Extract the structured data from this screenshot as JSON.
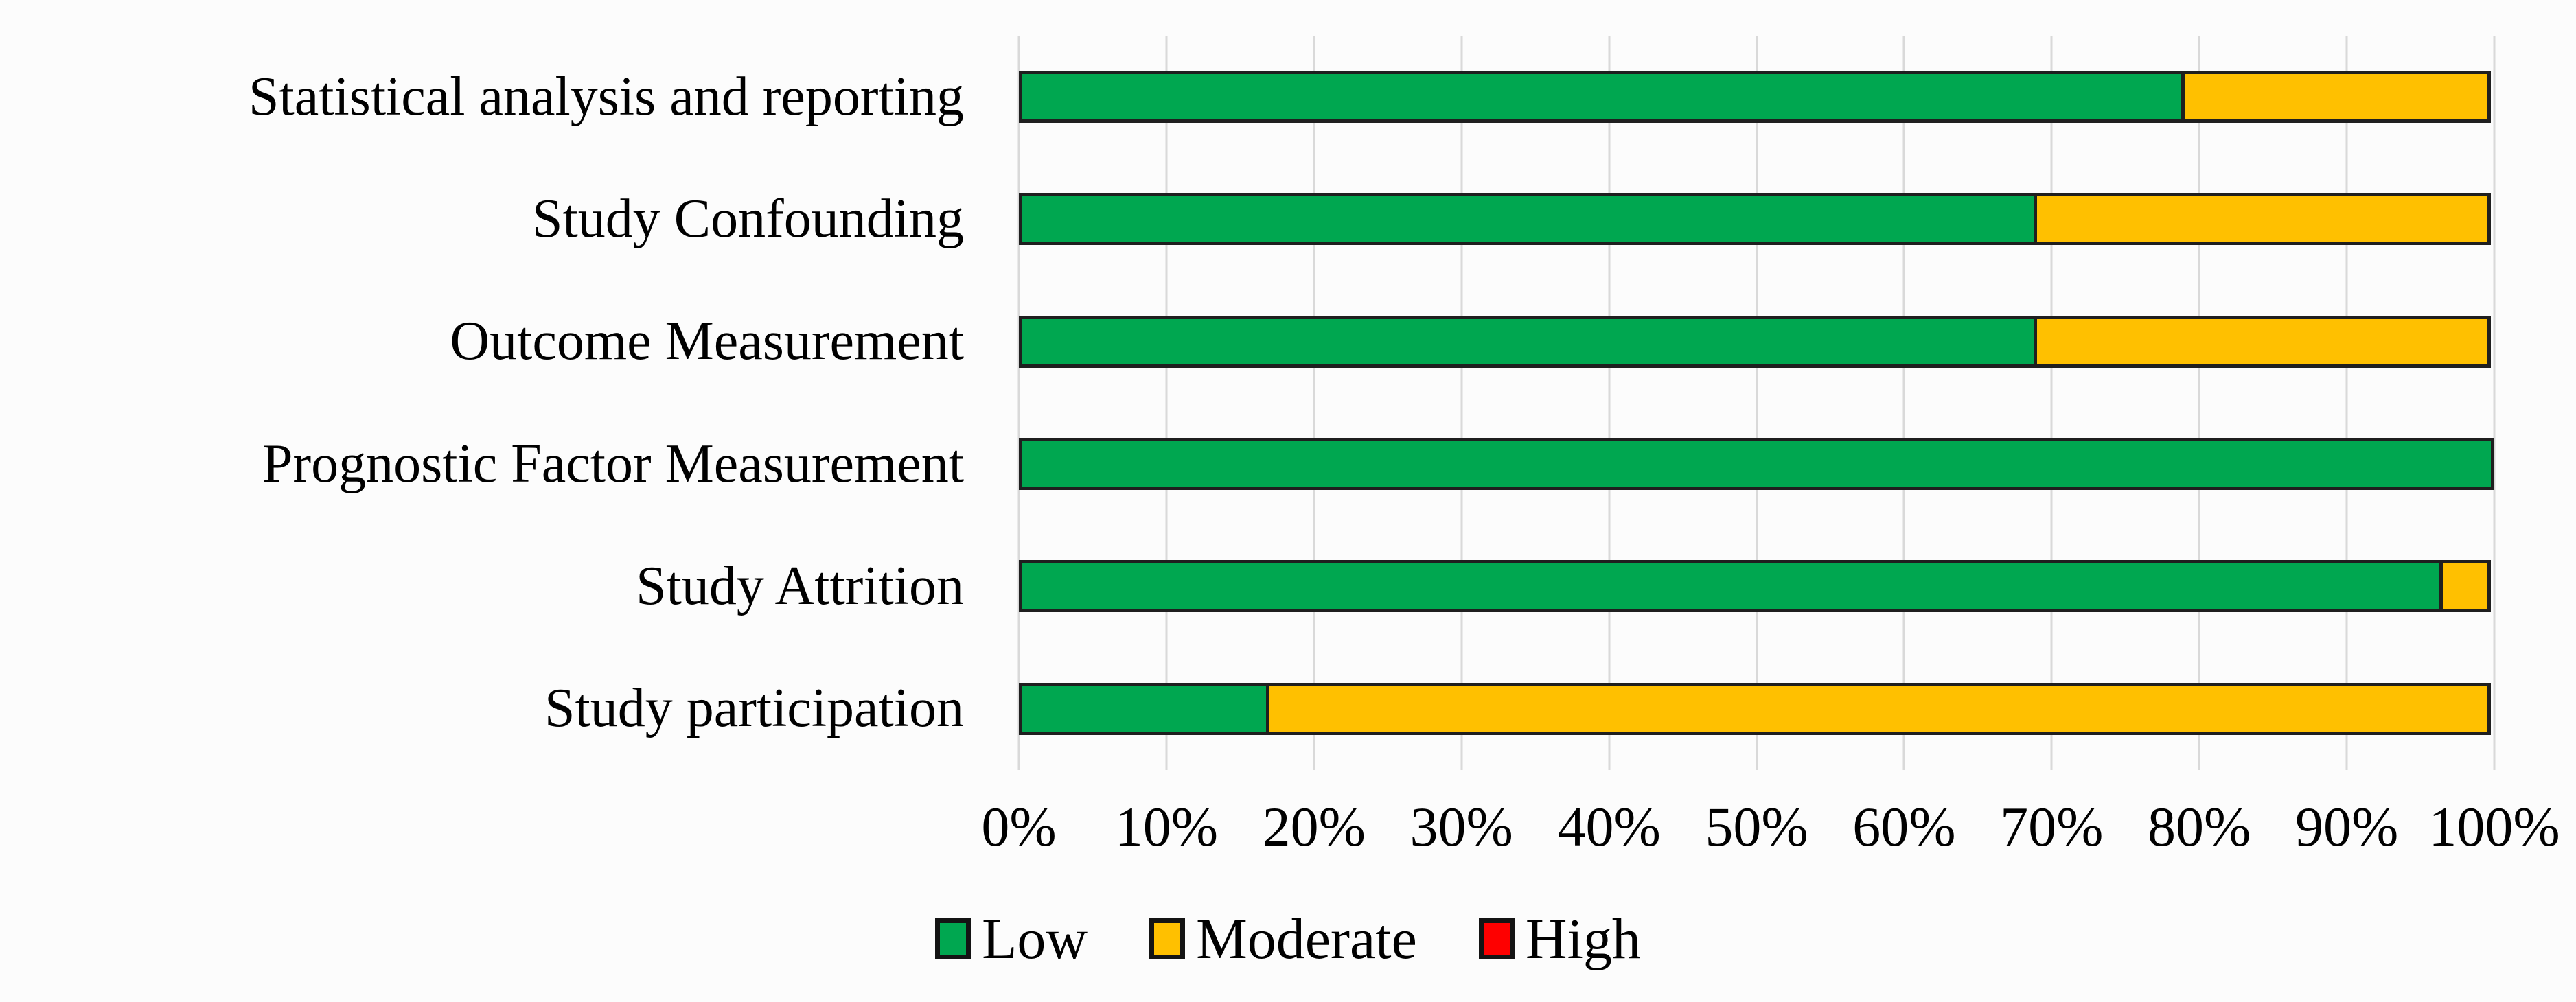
{
  "figure": {
    "background": "#FCFCFC",
    "gridline_color": "#D9D9D9",
    "bar_border_color": "#1F1F1F"
  },
  "chart_data": {
    "type": "bar",
    "orientation": "horizontal",
    "stacked": true,
    "title": "",
    "xlabel": "",
    "ylabel": "",
    "xlim": [
      0,
      100
    ],
    "grid": "vertical major gridlines on",
    "categories": [
      "Statistical analysis and reporting",
      "Study Confounding",
      "Outcome Measurement",
      "Prognostic Factor Measurement",
      "Study Attrition",
      "Study participation"
    ],
    "series": [
      {
        "name": "Low",
        "color": "#00A750",
        "values": [
          79,
          69,
          69,
          100,
          96.5,
          17
        ]
      },
      {
        "name": "Moderate",
        "color": "#FFC000",
        "values": [
          21,
          31,
          31,
          0,
          3.5,
          83
        ]
      },
      {
        "name": "High",
        "color": "#FE0000",
        "values": [
          0,
          0,
          0,
          0,
          0,
          0
        ]
      }
    ],
    "x_axis": {
      "ticks": [
        "0%",
        "10%",
        "20%",
        "30%",
        "40%",
        "50%",
        "60%",
        "70%",
        "80%",
        "90%",
        "100%"
      ],
      "unit": "%"
    },
    "legend": {
      "position": "bottom",
      "items": [
        "Low",
        "Moderate",
        "High"
      ]
    }
  }
}
